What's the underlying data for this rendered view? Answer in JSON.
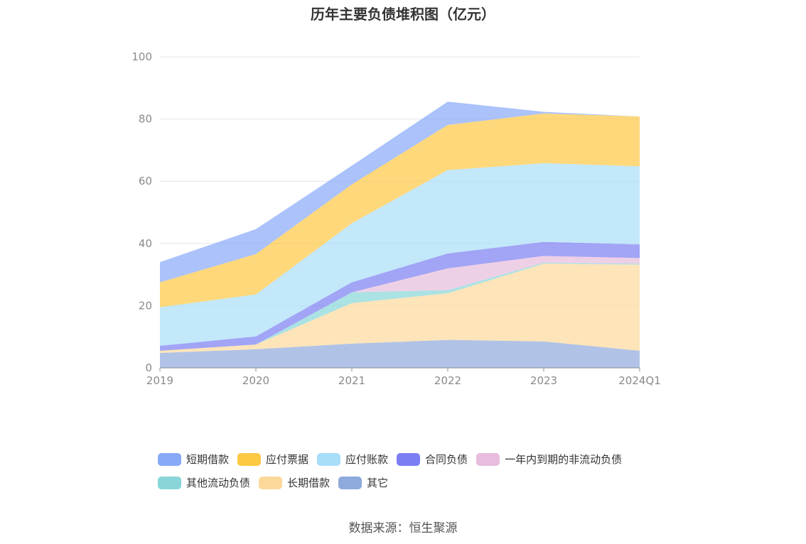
{
  "chart_data": {
    "type": "area",
    "stacked": true,
    "title": "历年主要负债堆积图（亿元）",
    "xlabel": "",
    "ylabel": "",
    "categories": [
      "2019",
      "2020",
      "2021",
      "2022",
      "2023",
      "2024Q1"
    ],
    "ylim": [
      0,
      100
    ],
    "yticks": [
      0,
      20,
      40,
      60,
      80,
      100
    ],
    "grid": true,
    "legend_position": "bottom",
    "series": [
      {
        "name": "其它",
        "color": "#8faadc",
        "values": [
          4.8,
          6.0,
          7.8,
          9.0,
          8.5,
          5.5
        ]
      },
      {
        "name": "长期借款",
        "color": "#fdd89b",
        "values": [
          0.7,
          1.5,
          13.0,
          15.0,
          25.0,
          27.7
        ]
      },
      {
        "name": "其他流动负债",
        "color": "#88d6d8",
        "values": [
          0.0,
          0.0,
          3.5,
          1.0,
          0.3,
          0.3
        ]
      },
      {
        "name": "一年内到期的非流动负债",
        "color": "#e7bcdc",
        "values": [
          0.0,
          0.0,
          0.0,
          7.0,
          2.2,
          1.8
        ]
      },
      {
        "name": "合同负债",
        "color": "#7b7ef2",
        "values": [
          1.6,
          2.6,
          3.2,
          4.8,
          4.5,
          4.4
        ]
      },
      {
        "name": "应付账款",
        "color": "#a8def8",
        "values": [
          12.4,
          13.5,
          19.0,
          26.8,
          25.3,
          25.1
        ]
      },
      {
        "name": "应付票据",
        "color": "#fdc843",
        "values": [
          8.0,
          13.0,
          12.5,
          14.5,
          16.0,
          16.0
        ]
      },
      {
        "name": "短期借款",
        "color": "#88a8f8",
        "values": [
          6.5,
          8.0,
          6.0,
          7.5,
          0.5,
          0.0
        ]
      }
    ]
  },
  "legend": {
    "rows": [
      [
        {
          "label": "短期借款",
          "color": "#88a8f8"
        },
        {
          "label": "应付票据",
          "color": "#fdc843"
        },
        {
          "label": "应付账款",
          "color": "#a8def8"
        },
        {
          "label": "合同负债",
          "color": "#7b7ef2"
        },
        {
          "label": "一年内到期的非流动负债",
          "color": "#e7bcdc"
        }
      ],
      [
        {
          "label": "其他流动负债",
          "color": "#88d6d8"
        },
        {
          "label": "长期借款",
          "color": "#fdd89b"
        },
        {
          "label": "其它",
          "color": "#8faadc"
        }
      ]
    ]
  },
  "source": "数据来源：恒生聚源"
}
